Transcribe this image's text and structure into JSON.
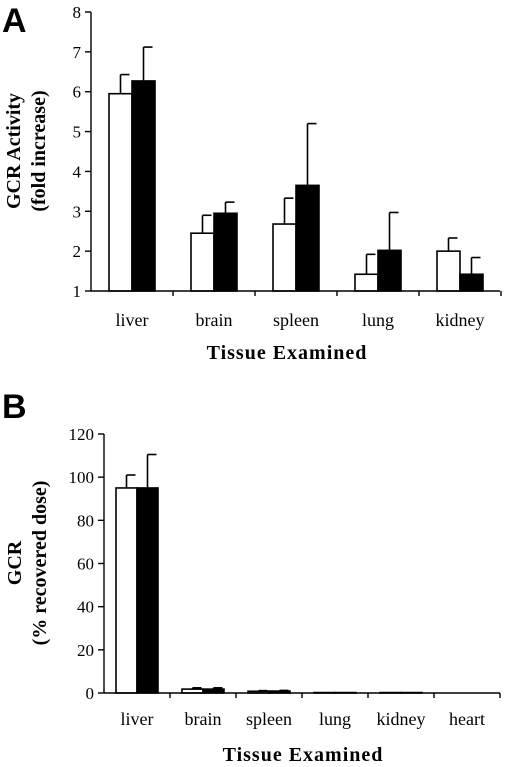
{
  "chart_data": [
    {
      "panel": "A",
      "type": "bar",
      "categories": [
        "liver",
        "brain",
        "spleen",
        "lung",
        "kidney"
      ],
      "series": [
        {
          "color": "#ffffff",
          "values": [
            5.95,
            2.45,
            2.68,
            1.42,
            2.0
          ],
          "errors": [
            0.48,
            0.45,
            0.65,
            0.5,
            0.33
          ]
        },
        {
          "color": "#000000",
          "values": [
            6.27,
            2.95,
            3.65,
            2.02,
            1.42
          ],
          "errors": [
            0.85,
            0.28,
            1.55,
            0.95,
            0.42
          ]
        }
      ],
      "ylabel": [
        "GCR Activity",
        "(fold increase)"
      ],
      "xlabel": "Tissue Examined",
      "ylim": [
        1,
        8
      ],
      "yticks": [
        "1",
        "2",
        "3",
        "4",
        "5",
        "6",
        "7",
        "8"
      ],
      "grid": false
    },
    {
      "panel": "B",
      "type": "bar",
      "categories": [
        "liver",
        "brain",
        "spleen",
        "lung",
        "kidney",
        "heart"
      ],
      "series": [
        {
          "color": "#ffffff",
          "values": [
            95,
            1.8,
            0.8,
            0.2,
            0.2,
            0
          ],
          "errors": [
            6,
            0.6,
            0.3,
            0,
            0,
            0
          ]
        },
        {
          "color": "#000000",
          "values": [
            95,
            1.8,
            0.9,
            0.2,
            0.2,
            0
          ],
          "errors": [
            15.5,
            0.6,
            0.3,
            0,
            0,
            0
          ]
        }
      ],
      "ylabel": [
        "GCR",
        "(% recovered dose)"
      ],
      "xlabel": "Tissue Examined",
      "ylim": [
        0,
        120
      ],
      "yticks": [
        "0",
        "20",
        "40",
        "60",
        "80",
        "100",
        "120"
      ],
      "grid": false
    }
  ]
}
